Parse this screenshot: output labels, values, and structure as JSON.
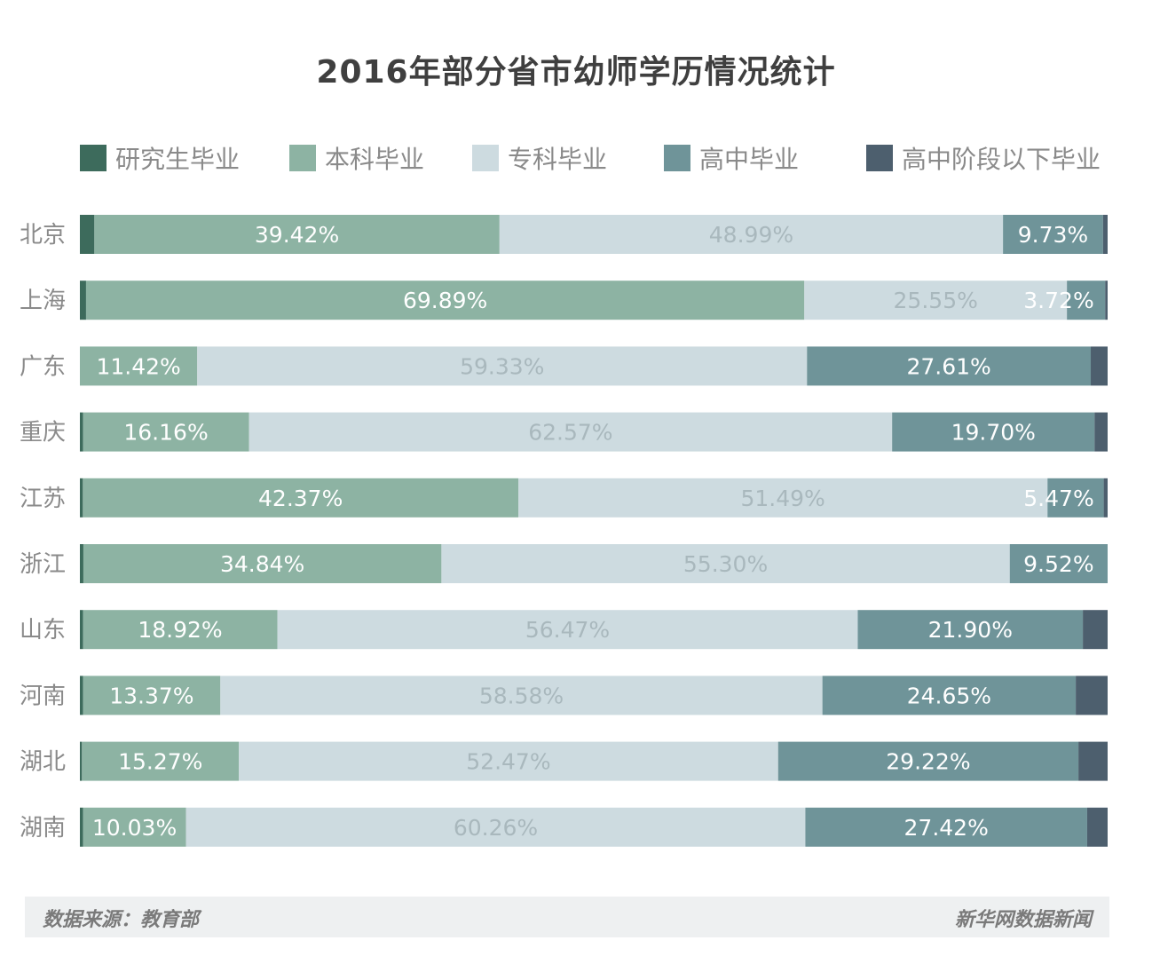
{
  "title": "2016年部分省市幼师学历情况统计",
  "source": "数据来源：教育部",
  "brand": "新华网数据新闻",
  "chart_data": {
    "type": "bar",
    "orientation": "horizontal",
    "stacked": true,
    "categories": [
      "北京",
      "上海",
      "广东",
      "重庆",
      "江苏",
      "浙江",
      "山东",
      "河南",
      "湖北",
      "湖南"
    ],
    "series": [
      {
        "name": "研究生毕业",
        "color": "#3d6b5c",
        "values": [
          1.41,
          0.6,
          0.0,
          0.3,
          0.29,
          0.34,
          0.3,
          0.3,
          0.2,
          0.3
        ],
        "labels": [
          "",
          "",
          "",
          "",
          "",
          "",
          "",
          "",
          "",
          ""
        ]
      },
      {
        "name": "本科毕业",
        "color": "#8db3a3",
        "values": [
          39.42,
          69.89,
          11.42,
          16.16,
          42.37,
          34.84,
          18.92,
          13.37,
          15.27,
          10.03
        ],
        "labels": [
          "39.42%",
          "69.89%",
          "11.42%",
          "16.16%",
          "42.37%",
          "34.84%",
          "18.92%",
          "13.37%",
          "15.27%",
          "10.03%"
        ]
      },
      {
        "name": "专科毕业",
        "color": "#cddbe0",
        "values": [
          48.99,
          25.55,
          59.33,
          62.57,
          51.49,
          55.3,
          56.47,
          58.58,
          52.47,
          60.26
        ],
        "labels": [
          "48.99%",
          "25.55%",
          "59.33%",
          "62.57%",
          "51.49%",
          "55.30%",
          "56.47%",
          "58.58%",
          "52.47%",
          "60.26%"
        ]
      },
      {
        "name": "高中毕业",
        "color": "#6f9499",
        "values": [
          9.73,
          3.72,
          27.61,
          19.7,
          5.47,
          9.52,
          21.9,
          24.65,
          29.22,
          27.42
        ],
        "labels": [
          "9.73%",
          "3.72%",
          "27.61%",
          "19.70%",
          "5.47%",
          "9.52%",
          "21.90%",
          "24.65%",
          "29.22%",
          "27.42%"
        ]
      },
      {
        "name": "高中阶段以下毕业",
        "color": "#4d5f6e",
        "values": [
          0.45,
          0.24,
          1.64,
          1.27,
          0.38,
          0.0,
          2.41,
          3.1,
          2.84,
          1.99
        ],
        "labels": [
          "",
          "",
          "",
          "",
          "",
          "",
          "",
          "",
          "",
          ""
        ]
      }
    ],
    "xlim": [
      0,
      100
    ],
    "unit": "%",
    "legend_position": "top"
  }
}
